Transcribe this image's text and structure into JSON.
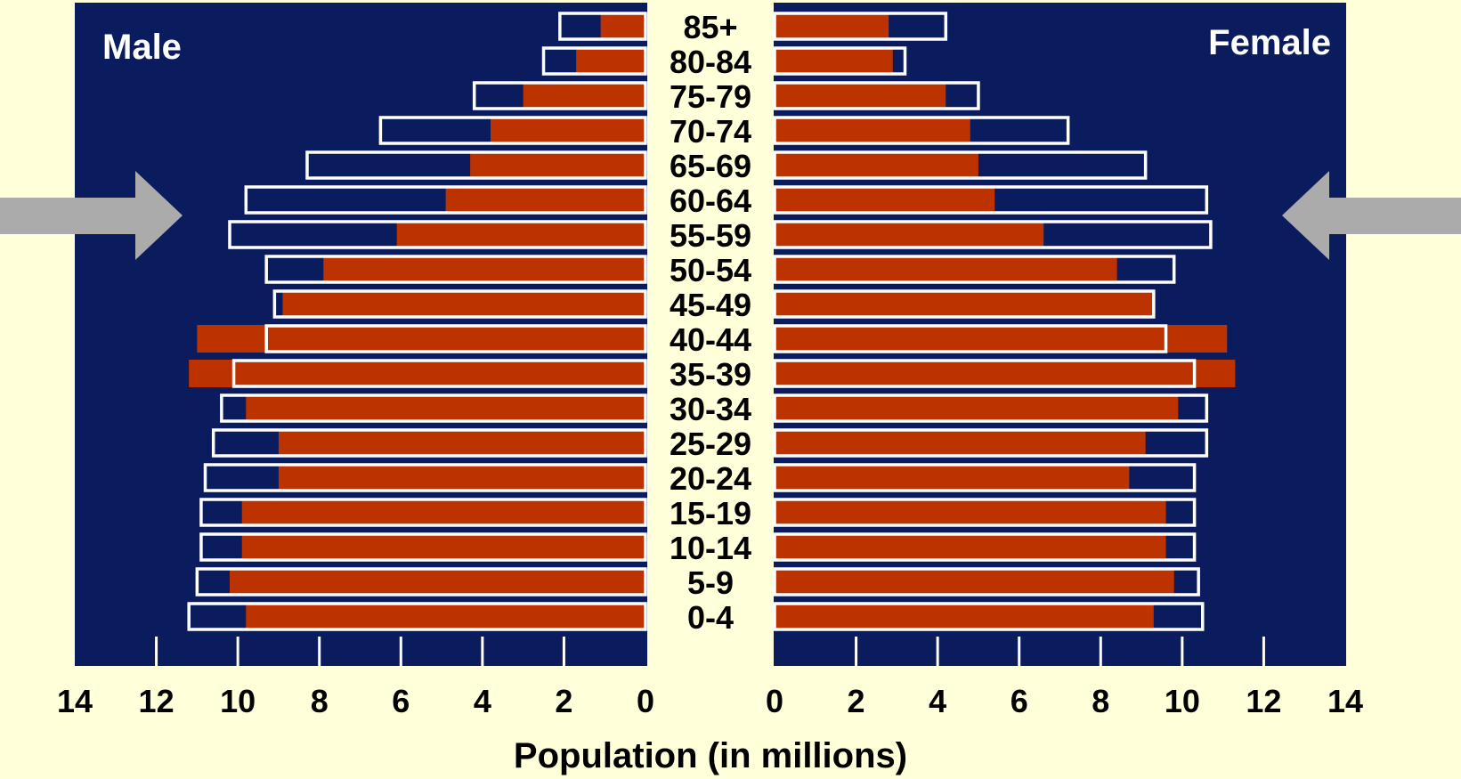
{
  "chart_data": {
    "type": "bar",
    "subtype": "population-pyramid",
    "xlabel": "Population (in millions)",
    "panel_labels": {
      "left": "Male",
      "right": "Female"
    },
    "xlim": [
      0,
      14
    ],
    "xticks": [
      "14",
      "12",
      "10",
      "8",
      "6",
      "4",
      "2",
      "0"
    ],
    "xticks_right": [
      "0",
      "2",
      "4",
      "6",
      "8",
      "10",
      "12",
      "14"
    ],
    "categories": [
      "85+",
      "80-84",
      "75-79",
      "70-74",
      "65-69",
      "60-64",
      "55-59",
      "50-54",
      "45-49",
      "40-44",
      "35-39",
      "30-34",
      "25-29",
      "20-24",
      "15-19",
      "10-14",
      "5-9",
      "0-4"
    ],
    "series": [
      {
        "role": "filled bars (red)",
        "male": [
          1.1,
          1.7,
          3.0,
          3.8,
          4.3,
          4.9,
          6.1,
          7.9,
          8.9,
          11.0,
          11.2,
          9.8,
          9.0,
          9.0,
          9.9,
          9.9,
          10.2,
          9.8
        ],
        "female": [
          2.8,
          2.9,
          4.2,
          4.8,
          5.0,
          5.4,
          6.6,
          8.4,
          9.3,
          11.1,
          11.3,
          9.9,
          9.1,
          8.7,
          9.6,
          9.6,
          9.8,
          9.3
        ]
      },
      {
        "role": "outlined bars (white outline)",
        "male": [
          2.1,
          2.5,
          4.2,
          6.5,
          8.3,
          9.8,
          10.2,
          9.3,
          9.1,
          9.3,
          10.1,
          10.4,
          10.6,
          10.8,
          10.9,
          10.9,
          11.0,
          11.2
        ],
        "female": [
          4.2,
          3.2,
          5.0,
          7.2,
          9.1,
          10.6,
          10.7,
          9.8,
          9.3,
          9.6,
          10.3,
          10.6,
          10.6,
          10.3,
          10.3,
          10.3,
          10.4,
          10.5
        ]
      }
    ],
    "colors": {
      "panel_background": "#0B1C5E",
      "filled_bar": "#BD3300",
      "outline": "#FFFFFF",
      "page_background": "#FFFFD9",
      "arrow": "#ABABAB"
    },
    "annotations": [
      "arrow pointing at 55-64 age groups from left",
      "arrow pointing at 55-64 age groups from right"
    ]
  }
}
